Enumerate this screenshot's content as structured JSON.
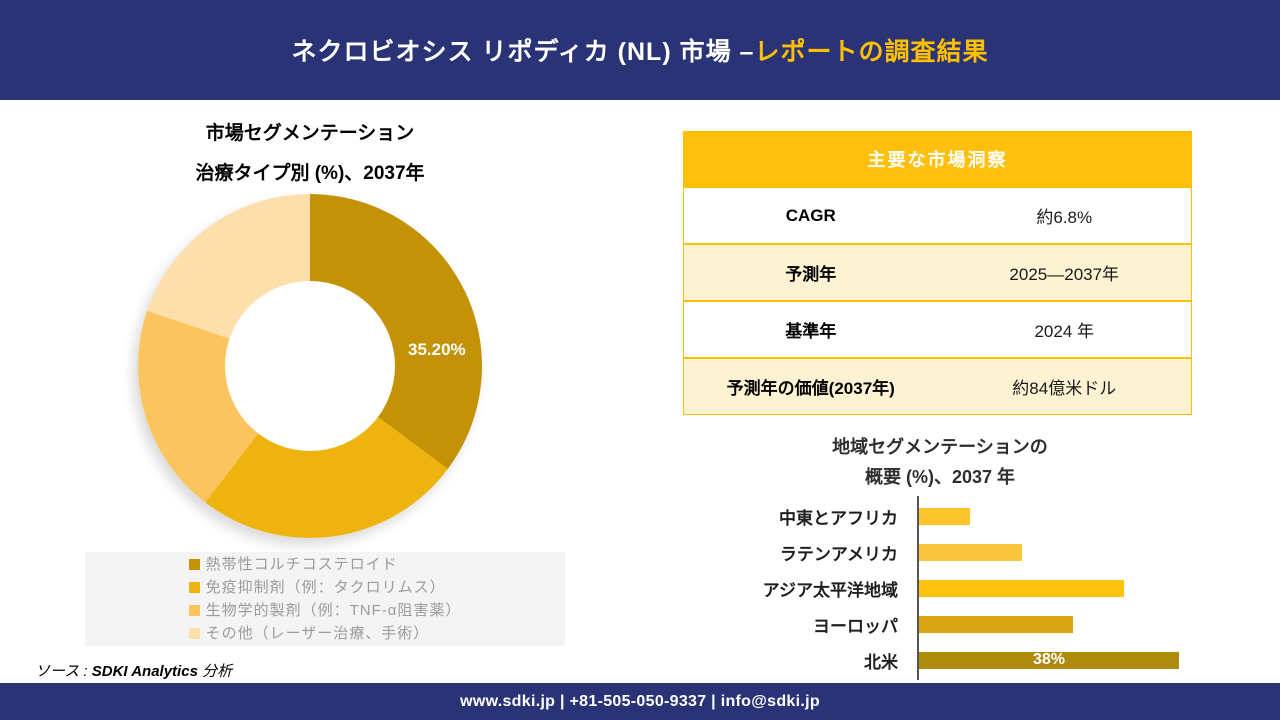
{
  "header": {
    "title_white": "ネクロビオシス リポディカ (NL) 市場 –",
    "title_gold": "レポートの調査結果",
    "bg_color": "#2B3377",
    "accent_color": "#FFC000"
  },
  "donut_section": {
    "title_line1": "市場セグメンテーション",
    "title_line2": "治療タイプ別 (%)、2037年"
  },
  "chart_data": [
    {
      "type": "pie",
      "subtype": "donut",
      "title": "市場セグメンテーション 治療タイプ別 (%)、2037年",
      "categories": [
        "熱帯性コルチコステロイド",
        "免疫抑制剤（例：タクロリムス）",
        "生物学的製剤（例：TNF-α阻害薬）",
        "その他（レーザー治療、手術）"
      ],
      "values": [
        35.2,
        25.2,
        19.8,
        19.8
      ],
      "labels": [
        "35.20%",
        "",
        "",
        ""
      ],
      "colors": [
        "#C49206",
        "#EFB310",
        "#FBC45E",
        "#FDDFAC"
      ],
      "legend_position": "bottom",
      "start_angle_deg": 0
    },
    {
      "type": "bar",
      "orientation": "horizontal",
      "title": "地域セグメンテーションの概要 (%)、2037 年",
      "categories": [
        "中東とアフリカ",
        "ラテンアメリカ",
        "アジア太平洋地域",
        "ヨーロッパ",
        "北米"
      ],
      "values": [
        7.5,
        15,
        30,
        22.5,
        38
      ],
      "labels": [
        "",
        "",
        "",
        "",
        "38%"
      ],
      "colors": [
        "#FCC52E",
        "#FBC53E",
        "#FEC20F",
        "#D7A413",
        "#AF8B0B"
      ],
      "xlim": [
        0,
        40
      ],
      "grid": false
    }
  ],
  "insights_table": {
    "header": "主要な市場洞察",
    "rows": [
      {
        "label": "CAGR",
        "value": "約6.8%"
      },
      {
        "label": "予測年",
        "value": "2025—2037年"
      },
      {
        "label": "基準年",
        "value": "2024 年"
      },
      {
        "label": "予測年の価値(2037年)",
        "value": "約84億米ドル"
      }
    ],
    "header_bg": "#FEC00D",
    "row_alt_bg": "#FDF2D2",
    "border_color": "#FFC000"
  },
  "bar_section": {
    "title_line1": "地域セグメンテーションの",
    "title_line2": "概要 (%)、2037 年"
  },
  "source": {
    "prefix": "ソース : ",
    "brand": "SDKI Analytics",
    "suffix": " 分析"
  },
  "footer": {
    "text": "www.sdki.jp | +81-505-050-9337 | info@sdki.jp"
  }
}
